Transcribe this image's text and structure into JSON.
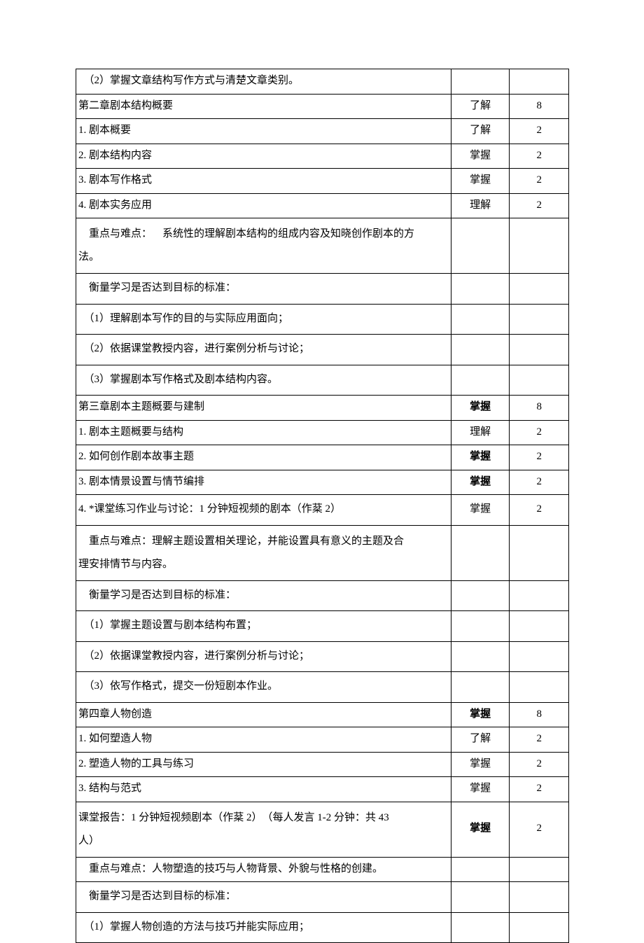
{
  "rows": [
    {
      "type": "single",
      "c1": "　（2）掌握文章结构写作方式与清楚文章类别。",
      "c2": "",
      "c3": "",
      "tall": false
    },
    {
      "type": "single",
      "c1": "第二章剧本结构概要",
      "c2": "了解",
      "c3": "8",
      "tall": false
    },
    {
      "type": "single",
      "c1": "1. 剧本概要",
      "c2": "了解",
      "c3": "2",
      "tall": false
    },
    {
      "type": "single",
      "c1": "2. 剧本结构内容",
      "c2": "掌握",
      "c3": "2",
      "tall": false
    },
    {
      "type": "single",
      "c1": "3. 剧本写作格式",
      "c2": "掌握",
      "c3": "2",
      "tall": false
    },
    {
      "type": "single",
      "c1": "4. 剧本实务应用",
      "c2": "理解",
      "c3": "2",
      "tall": false
    },
    {
      "type": "multi",
      "c2": "",
      "c3": "",
      "lines": [
        {
          "text": "　重点与难点： 系统性的理解剧本结构的组成内容及知晓创作剧本的方",
          "cls": ""
        },
        {
          "text": "法。",
          "cls": ""
        }
      ]
    },
    {
      "type": "single",
      "c1": "　衡量学习是否达到目标的标准：",
      "c2": "",
      "c3": "",
      "tall": true
    },
    {
      "type": "single",
      "c1": "　（1）理解剧本写作的目的与实际应用面向；",
      "c2": "",
      "c3": "",
      "tall": true
    },
    {
      "type": "single",
      "c1": "　（2）依据课堂教授内容，进行案例分析与讨论；",
      "c2": "",
      "c3": "",
      "tall": true
    },
    {
      "type": "single",
      "c1": "　（3）掌握剧本写作格式及剧本结构内容。",
      "c2": "",
      "c3": "",
      "tall": true
    },
    {
      "type": "single",
      "c1": "第三章剧本主题概要与建制",
      "c2": "掌握",
      "c3": "8",
      "bold2": true,
      "tall": false
    },
    {
      "type": "single",
      "c1": "1. 剧本主题概要与结构",
      "c2": "理解",
      "c3": "2",
      "tall": false
    },
    {
      "type": "single",
      "c1": "2. 如何创作剧本故事主题",
      "c2": "掌握",
      "c3": "2",
      "bold2": true,
      "tall": false
    },
    {
      "type": "single",
      "c1": "3. 剧本情景设置与情节编排",
      "c2": "掌握",
      "c3": "2",
      "bold2": true,
      "tall": false
    },
    {
      "type": "single",
      "c1": "4. *课堂练习作业与讨论：1 分钟短视频的剧本（作棻 2）",
      "c2": "掌握",
      "c3": "2",
      "tall": true
    },
    {
      "type": "multi",
      "c2": "",
      "c3": "",
      "lines": [
        {
          "text": "　重点与难点：理解主题设置相关理论，并能设置具有意义的主题及合",
          "cls": ""
        },
        {
          "text": "理安排情节与内容。",
          "cls": ""
        }
      ]
    },
    {
      "type": "single",
      "c1": "　衡量学习是否达到目标的标准：",
      "c2": "",
      "c3": "",
      "tall": true
    },
    {
      "type": "single",
      "c1": "　（1）掌握主题设置与剧本结构布置；",
      "c2": "",
      "c3": "",
      "tall": true
    },
    {
      "type": "single",
      "c1": "　（2）依据课堂教授内容，进行案例分析与讨论；",
      "c2": "",
      "c3": "",
      "tall": true
    },
    {
      "type": "single",
      "c1": "　（3）依写作格式，提交一份短剧本作业。",
      "c2": "",
      "c3": "",
      "tall": true
    },
    {
      "type": "single",
      "c1": "第四章人物创造",
      "c2": "掌握",
      "c3": "8",
      "bold2": true,
      "tall": false
    },
    {
      "type": "single",
      "c1": "1. 如何塑造人物",
      "c2": "了解",
      "c3": "2",
      "tall": false
    },
    {
      "type": "single",
      "c1": "2. 塑造人物的工具与练习",
      "c2": "掌握",
      "c3": "2",
      "tall": false
    },
    {
      "type": "single",
      "c1": "3. 结构与范式",
      "c2": "掌握",
      "c3": "2",
      "tall": false
    },
    {
      "type": "multi",
      "c2": "掌握",
      "c3": "2",
      "bold2": true,
      "lines": [
        {
          "text": "课堂报告：1 分钟短视频剧本（作棻 2）　（每人发言 1-2 分钟：共 43",
          "cls": ""
        },
        {
          "text": "人）",
          "cls": ""
        }
      ]
    },
    {
      "type": "single",
      "c1": "　重点与难点：人物塑造的技巧与人物背景、外貌与性格的创建。",
      "c2": "",
      "c3": "",
      "tall": false
    },
    {
      "type": "single",
      "c1": "　衡量学习是否达到目标的标准：",
      "c2": "",
      "c3": "",
      "tall": true
    },
    {
      "type": "single",
      "c1": "　（1）掌握人物创造的方法与技巧并能实际应用；",
      "c2": "",
      "c3": "",
      "tall": true
    }
  ]
}
